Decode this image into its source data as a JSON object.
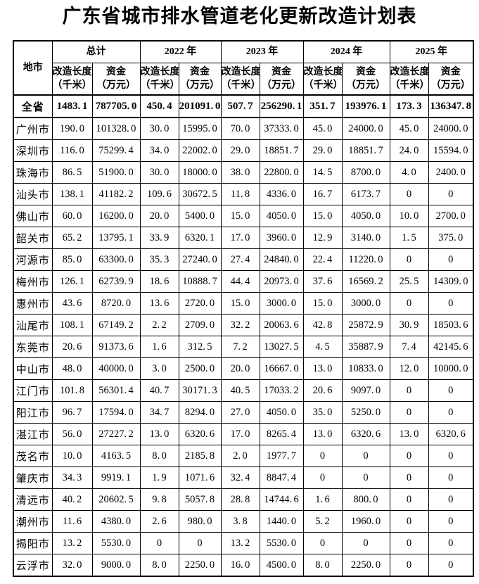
{
  "title": "广东省城市排水管道老化更新改造计划表",
  "table": {
    "corner_header": "地市",
    "groups": {
      "total": "总计",
      "y2022": "2022 年",
      "y2023": "2023 年",
      "y2024": "2024 年",
      "y2025": "2025 年"
    },
    "sub_headers": {
      "length_label": "改造长度",
      "length_unit": "（千米）",
      "fund_label": "资金",
      "fund_unit": "（万元）"
    },
    "columns_meaning": [
      "total_length_km",
      "total_fund_wy",
      "2022_length_km",
      "2022_fund_wy",
      "2023_length_km",
      "2023_fund_wy",
      "2024_length_km",
      "2024_fund_wy",
      "2025_length_km",
      "2025_fund_wy"
    ],
    "rows": [
      {
        "name": "全省",
        "emphasis": true,
        "values": [
          "1483.1",
          "787705.0",
          "450.4",
          "201091.0",
          "507.7",
          "256290.1",
          "351.7",
          "193976.1",
          "173.3",
          "136347.8"
        ]
      },
      {
        "name": "广州市",
        "emphasis": false,
        "values": [
          "190.0",
          "101328.0",
          "30.0",
          "15995.0",
          "70.0",
          "37333.0",
          "45.0",
          "24000.0",
          "45.0",
          "24000.0"
        ]
      },
      {
        "name": "深圳市",
        "emphasis": false,
        "values": [
          "116.0",
          "75299.4",
          "34.0",
          "22002.0",
          "29.0",
          "18851.7",
          "29.0",
          "18851.7",
          "24.0",
          "15594.0"
        ]
      },
      {
        "name": "珠海市",
        "emphasis": false,
        "values": [
          "86.5",
          "51900.0",
          "30.0",
          "18000.0",
          "38.0",
          "22800.0",
          "14.5",
          "8700.0",
          "4.0",
          "2400.0"
        ]
      },
      {
        "name": "汕头市",
        "emphasis": false,
        "values": [
          "138.1",
          "41182.2",
          "109.6",
          "30672.5",
          "11.8",
          "4336.0",
          "16.7",
          "6173.7",
          "0",
          "0"
        ]
      },
      {
        "name": "佛山市",
        "emphasis": false,
        "values": [
          "60.0",
          "16200.0",
          "20.0",
          "5400.0",
          "15.0",
          "4050.0",
          "15.0",
          "4050.0",
          "10.0",
          "2700.0"
        ]
      },
      {
        "name": "韶关市",
        "emphasis": false,
        "values": [
          "65.2",
          "13795.1",
          "33.9",
          "6320.1",
          "17.0",
          "3960.0",
          "12.9",
          "3140.0",
          "1.5",
          "375.0"
        ]
      },
      {
        "name": "河源市",
        "emphasis": false,
        "values": [
          "85.0",
          "63300.0",
          "35.3",
          "27240.0",
          "27.4",
          "24840.0",
          "22.4",
          "11220.0",
          "0",
          "0"
        ]
      },
      {
        "name": "梅州市",
        "emphasis": false,
        "values": [
          "126.1",
          "62739.9",
          "18.6",
          "10888.7",
          "44.4",
          "20973.0",
          "37.6",
          "16569.2",
          "25.5",
          "14309.0"
        ]
      },
      {
        "name": "惠州市",
        "emphasis": false,
        "values": [
          "43.6",
          "8720.0",
          "13.6",
          "2720.0",
          "15.0",
          "3000.0",
          "15.0",
          "3000.0",
          "0",
          "0"
        ]
      },
      {
        "name": "汕尾市",
        "emphasis": false,
        "values": [
          "108.1",
          "67149.2",
          "2.2",
          "2709.0",
          "32.2",
          "20063.6",
          "42.8",
          "25872.9",
          "30.9",
          "18503.6"
        ]
      },
      {
        "name": "东莞市",
        "emphasis": false,
        "values": [
          "20.6",
          "91373.6",
          "1.6",
          "312.5",
          "7.2",
          "13027.5",
          "4.5",
          "35887.9",
          "7.4",
          "42145.6"
        ]
      },
      {
        "name": "中山市",
        "emphasis": false,
        "values": [
          "48.0",
          "40000.0",
          "3.0",
          "2500.0",
          "20.0",
          "16667.0",
          "13.0",
          "10833.0",
          "12.0",
          "10000.0"
        ]
      },
      {
        "name": "江门市",
        "emphasis": false,
        "values": [
          "101.8",
          "56301.4",
          "40.7",
          "30171.3",
          "40.5",
          "17033.2",
          "20.6",
          "9097.0",
          "0",
          "0"
        ]
      },
      {
        "name": "阳江市",
        "emphasis": false,
        "values": [
          "96.7",
          "17594.0",
          "34.7",
          "8294.0",
          "27.0",
          "4050.0",
          "35.0",
          "5250.0",
          "0",
          "0"
        ]
      },
      {
        "name": "湛江市",
        "emphasis": false,
        "values": [
          "56.0",
          "27227.2",
          "13.0",
          "6320.6",
          "17.0",
          "8265.4",
          "13.0",
          "6320.6",
          "13.0",
          "6320.6"
        ]
      },
      {
        "name": "茂名市",
        "emphasis": false,
        "values": [
          "10.0",
          "4163.5",
          "8.0",
          "2185.8",
          "2.0",
          "1977.7",
          "0",
          "0",
          "0",
          "0"
        ]
      },
      {
        "name": "肇庆市",
        "emphasis": false,
        "values": [
          "34.3",
          "9919.1",
          "1.9",
          "1071.6",
          "32.4",
          "8847.4",
          "0",
          "0",
          "0",
          "0"
        ]
      },
      {
        "name": "清远市",
        "emphasis": false,
        "values": [
          "40.2",
          "20602.5",
          "9.8",
          "5057.8",
          "28.8",
          "14744.6",
          "1.6",
          "800.0",
          "0",
          "0"
        ]
      },
      {
        "name": "潮州市",
        "emphasis": false,
        "values": [
          "11.6",
          "4380.0",
          "2.6",
          "980.0",
          "3.8",
          "1440.0",
          "5.2",
          "1960.0",
          "0",
          "0"
        ]
      },
      {
        "name": "揭阳市",
        "emphasis": false,
        "values": [
          "13.2",
          "5530.0",
          "0",
          "0",
          "13.2",
          "5530.0",
          "0",
          "0",
          "0",
          "0"
        ]
      },
      {
        "name": "云浮市",
        "emphasis": false,
        "values": [
          "32.0",
          "9000.0",
          "8.0",
          "2250.0",
          "16.0",
          "4500.0",
          "8.0",
          "2250.0",
          "0",
          "0"
        ]
      }
    ]
  }
}
